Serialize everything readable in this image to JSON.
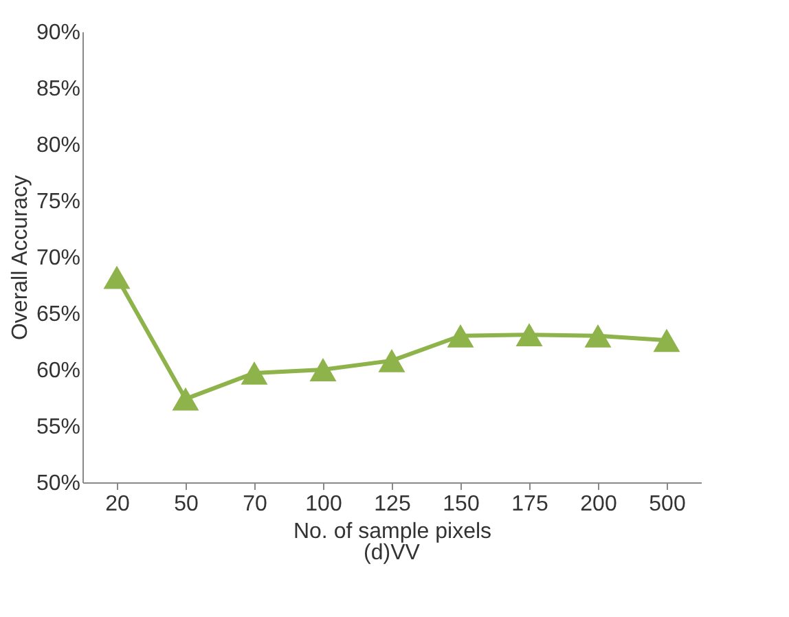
{
  "chart_data": {
    "type": "line",
    "categories": [
      "20",
      "50",
      "70",
      "100",
      "125",
      "150",
      "175",
      "200",
      "500"
    ],
    "series": [
      {
        "color": "#8db34a",
        "values": [
          68.2,
          57.4,
          59.7,
          60.0,
          60.8,
          63.0,
          63.1,
          63.0,
          62.6
        ]
      }
    ],
    "xlabel": "No. of sample pixels",
    "ylabel": "Overall Accuracy",
    "ylim": [
      50,
      90
    ],
    "yticks": [
      {
        "value": 50,
        "label": "50%"
      },
      {
        "value": 55,
        "label": "55%"
      },
      {
        "value": 60,
        "label": "60%"
      },
      {
        "value": 65,
        "label": "65%"
      },
      {
        "value": 70,
        "label": "70%"
      },
      {
        "value": 75,
        "label": "75%"
      },
      {
        "value": 80,
        "label": "80%"
      },
      {
        "value": 85,
        "label": "85%"
      },
      {
        "value": 90,
        "label": "90%"
      }
    ],
    "annotations": [
      "(d)VV"
    ],
    "marker": "triangle",
    "line_style": "solid",
    "grid": false
  }
}
